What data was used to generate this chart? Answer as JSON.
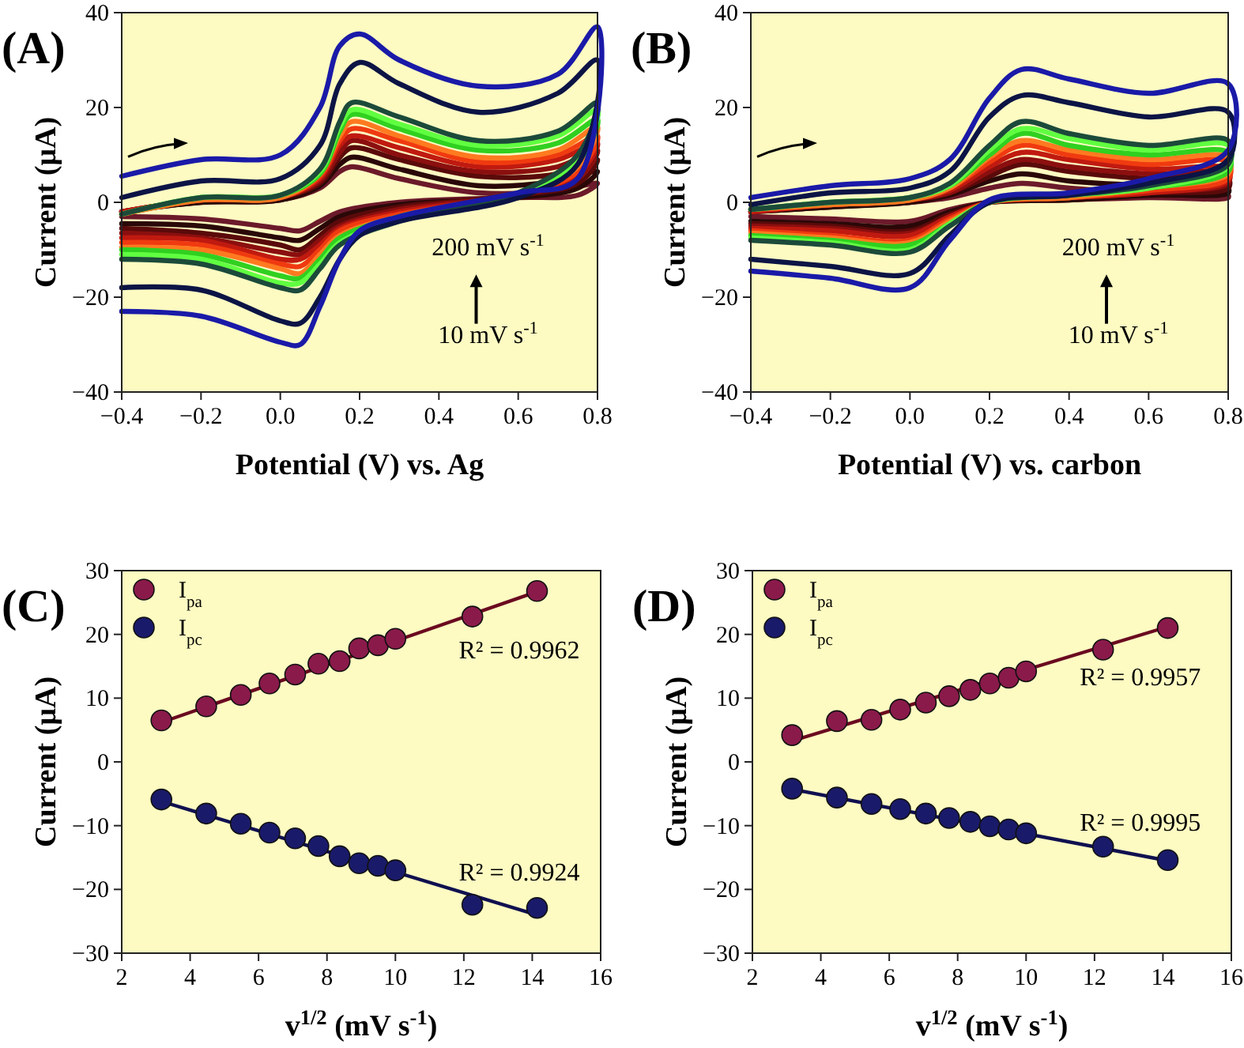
{
  "chart_data": [
    {
      "type": "line",
      "title": "(A)",
      "xlabel": "Potential (V) vs. Ag",
      "ylabel": "Current (μA)",
      "xlim": [
        -0.4,
        0.8
      ],
      "ylim": [
        -40,
        40
      ],
      "xticks": [
        {
          "value": -0.4,
          "label": "−0.4"
        },
        {
          "value": -0.2,
          "label": "−0.2"
        },
        {
          "value": 0,
          "label": "0.0"
        },
        0.2,
        0.4,
        0.6,
        0.8
      ],
      "yticks": [
        {
          "value": -40,
          "label": "−40"
        },
        {
          "value": -20,
          "label": "−20"
        },
        0,
        20,
        40
      ],
      "grid": false,
      "marker": "none",
      "line_style": "solid",
      "annotations": [
        "200 mV s$^{-1}$",
        "10 mV s$^{-1}$"
      ],
      "x": [
        -0.4,
        -0.2,
        0,
        0.1,
        0.15,
        0.18,
        0.3,
        0.5,
        0.7,
        0.8,
        0.75,
        0.6,
        0.3,
        0.15,
        0.1,
        0.05,
        0,
        -0.2,
        -0.4
      ],
      "series": [
        {
          "color": "#6b1a2a",
          "values": [
            -2,
            0,
            0.5,
            3,
            6.5,
            7.5,
            5,
            2,
            2.5,
            4,
            1.5,
            1,
            0,
            -2,
            -4,
            -6,
            -5.5,
            -3.5,
            -3
          ]
        },
        {
          "color": "#2a0808",
          "values": [
            -2,
            0,
            0.5,
            3.5,
            8,
            9.5,
            7,
            3.5,
            4.5,
            6.5,
            3,
            1,
            -0.5,
            -3,
            -5.5,
            -8,
            -7.5,
            -5,
            -4.5
          ]
        },
        {
          "color": "#5a0a0a",
          "values": [
            -2,
            0.5,
            1,
            4,
            9.5,
            11.5,
            9,
            5.5,
            6,
            9,
            4,
            1.5,
            -1,
            -4,
            -7,
            -10,
            -9,
            -6.5,
            -5.5
          ]
        },
        {
          "color": "#8b0f0f",
          "values": [
            -2,
            0.5,
            1,
            4.5,
            10.5,
            13,
            10,
            6.5,
            7.5,
            11,
            5,
            1.5,
            -1.5,
            -5,
            -8,
            -11,
            -10.5,
            -7.5,
            -6.5
          ]
        },
        {
          "color": "#c01a10",
          "values": [
            -2,
            0.5,
            1,
            5,
            12,
            14,
            11.5,
            7.5,
            9,
            12.5,
            6,
            1.5,
            -2,
            -5.5,
            -9,
            -12,
            -12,
            -8,
            -7.5
          ]
        },
        {
          "color": "#f03a10",
          "values": [
            -2.5,
            0.5,
            1,
            5.5,
            13,
            15.5,
            13,
            8.5,
            10,
            14,
            6.5,
            1.5,
            -2.5,
            -6,
            -10,
            -13.5,
            -13,
            -9,
            -8.5
          ]
        },
        {
          "color": "#ff7a20",
          "values": [
            -2.5,
            0.5,
            1,
            6,
            14,
            17,
            14,
            9.5,
            11,
            16,
            7.5,
            1.5,
            -3,
            -7,
            -11,
            -15,
            -14,
            -10,
            -9.5
          ]
        },
        {
          "color": "#30d020",
          "values": [
            -2.5,
            1,
            1.5,
            6,
            15,
            18.5,
            15.5,
            11,
            12.5,
            17.5,
            8.5,
            2,
            -3,
            -7.5,
            -12,
            -16,
            -15.5,
            -11,
            -10
          ]
        },
        {
          "color": "#60ff40",
          "values": [
            -2.5,
            1,
            1.5,
            6.5,
            16,
            19.5,
            16.5,
            12,
            14,
            19.5,
            9,
            2,
            -3.5,
            -8.5,
            -13,
            -17,
            -17,
            -12,
            -11
          ]
        },
        {
          "color": "#1c4a3a",
          "values": [
            -2.5,
            1,
            1.5,
            7,
            17,
            21,
            18,
            13,
            15,
            21,
            10,
            2,
            -4,
            -9,
            -14,
            -18.5,
            -18,
            -13,
            -12
          ]
        },
        {
          "color": "#0c1445",
          "x": [
            -0.4,
            -0.2,
            0,
            0.1,
            0.15,
            0.2,
            0.3,
            0.5,
            0.7,
            0.8,
            0.75,
            0.6,
            0.3,
            0.2,
            0.15,
            0.1,
            0.05,
            0,
            -0.2,
            -0.4
          ],
          "values": [
            1,
            4.5,
            5,
            12,
            25,
            29.5,
            25,
            19,
            23,
            30,
            8,
            1,
            -4,
            -7,
            -12,
            -20,
            -25.5,
            -25,
            -18.5,
            -18
          ]
        },
        {
          "color": "#1a1aa8",
          "x": [
            -0.4,
            -0.2,
            0,
            0.1,
            0.15,
            0.2,
            0.3,
            0.5,
            0.7,
            0.8,
            0.75,
            0.6,
            0.3,
            0.2,
            0.15,
            0.1,
            0.05,
            0,
            -0.2,
            -0.4
          ],
          "values": [
            5.5,
            9,
            10,
            20,
            33,
            35.5,
            30,
            24.5,
            27,
            37,
            5,
            2,
            -3,
            -6,
            -12,
            -22,
            -30,
            -29.5,
            -24,
            -23
          ]
        }
      ]
    },
    {
      "type": "line",
      "title": "(B)",
      "xlabel": "Potential (V) vs. carbon",
      "ylabel": "Current (μA)",
      "xlim": [
        -0.4,
        0.8
      ],
      "ylim": [
        -40,
        40
      ],
      "xticks": [
        {
          "value": -0.4,
          "label": "−0.4"
        },
        {
          "value": -0.2,
          "label": "−0.2"
        },
        {
          "value": 0,
          "label": "0.0"
        },
        0.2,
        0.4,
        0.6,
        0.8
      ],
      "yticks": [
        {
          "value": -40,
          "label": "−40"
        },
        {
          "value": -20,
          "label": "−20"
        },
        0,
        20,
        40
      ],
      "grid": false,
      "marker": "none",
      "line_style": "solid",
      "annotations": [
        "200 mV s$^{-1}$",
        "10 mV s$^{-1}$"
      ],
      "x": [
        -0.4,
        -0.2,
        0,
        0.1,
        0.2,
        0.28,
        0.4,
        0.6,
        0.8,
        0.8,
        0.6,
        0.4,
        0.2,
        0.1,
        0,
        -0.2,
        -0.4
      ],
      "series": [
        {
          "color": "#6b1a2a",
          "values": [
            -2,
            -1,
            0,
            1,
            3,
            4,
            3,
            2,
            1.5,
            1,
            1,
            0.5,
            0,
            -1.5,
            -4,
            -3.5,
            -3
          ]
        },
        {
          "color": "#2a0808",
          "values": [
            -2,
            -1,
            0,
            1.5,
            4.5,
            6,
            4.5,
            3.5,
            3,
            2,
            1.5,
            0.5,
            0,
            -2,
            -5,
            -4.5,
            -4
          ]
        },
        {
          "color": "#5a0a0a",
          "values": [
            -2,
            -0.5,
            0.5,
            2,
            5.5,
            8,
            6.5,
            5,
            5,
            3,
            2,
            1,
            0,
            -2.5,
            -6,
            -5,
            -4.5
          ]
        },
        {
          "color": "#8b0f0f",
          "values": [
            -2,
            -0.5,
            0.5,
            2,
            6.5,
            9,
            7.5,
            6,
            6,
            4,
            2,
            1,
            0,
            -3,
            -6.5,
            -5.5,
            -5
          ]
        },
        {
          "color": "#c01a10",
          "values": [
            -2,
            -0.5,
            0.5,
            2.5,
            7.5,
            10.5,
            9,
            7,
            7,
            4.5,
            2,
            1,
            0,
            -3,
            -7,
            -6,
            -5.5
          ]
        },
        {
          "color": "#f03a10",
          "values": [
            -1.5,
            -0.5,
            0.5,
            3,
            8.5,
            12,
            10,
            8,
            8.5,
            5,
            2.5,
            1,
            0,
            -3.5,
            -8,
            -7,
            -6
          ]
        },
        {
          "color": "#ff7a20",
          "values": [
            -1.5,
            -0.5,
            0.5,
            3,
            9.5,
            13,
            11,
            9,
            9.5,
            6,
            3,
            1,
            0,
            -4,
            -8.5,
            -7.5,
            -6.5
          ]
        },
        {
          "color": "#30d020",
          "values": [
            -1.5,
            0,
            1,
            3.5,
            10,
            14.5,
            12,
            10,
            10.5,
            6.5,
            3,
            1.5,
            0,
            -4.5,
            -9,
            -8,
            -7
          ]
        },
        {
          "color": "#60ff40",
          "values": [
            -1.5,
            0,
            1,
            3.5,
            11,
            15.5,
            13.5,
            11,
            12,
            7.5,
            3,
            1.5,
            0,
            -4.5,
            -10,
            -8.5,
            -7.5
          ]
        },
        {
          "color": "#1c4a3a",
          "values": [
            -1.5,
            0,
            1,
            4,
            12,
            17,
            14.5,
            12,
            13,
            8,
            3.5,
            1.5,
            0,
            -5,
            -10.5,
            -9,
            -8
          ]
        },
        {
          "color": "#0c1445",
          "values": [
            -0.5,
            2,
            3,
            6.5,
            18,
            22.5,
            21,
            18,
            19,
            9,
            4,
            1.5,
            0,
            -7,
            -15,
            -13.5,
            -12
          ]
        },
        {
          "color": "#1a1aa8",
          "values": [
            1,
            3.5,
            5,
            9,
            22,
            28,
            26,
            23,
            25,
            11,
            5,
            2,
            0.5,
            -8,
            -18,
            -16,
            -14.5
          ]
        }
      ]
    },
    {
      "type": "scatter",
      "title": "(C)",
      "xlabel": "v$^{1/2}$ (mV s$^{-1}$)",
      "ylabel": "Current (μA)",
      "xlim": [
        2,
        16
      ],
      "ylim": [
        -30,
        30
      ],
      "xticks": [
        2,
        4,
        6,
        8,
        10,
        12,
        14,
        16
      ],
      "yticks": [
        {
          "value": -30,
          "label": "−30"
        },
        {
          "value": -20,
          "label": "−20"
        },
        {
          "value": -10,
          "label": "−10"
        },
        0,
        10,
        20,
        30
      ],
      "grid": false,
      "legend": "top left",
      "annotations": [
        "R² = 0.9962",
        "R² = 0.9924"
      ],
      "x": [
        3.16,
        4.47,
        5.48,
        6.32,
        7.07,
        7.75,
        8.37,
        8.94,
        9.49,
        10,
        12.25,
        14.14
      ],
      "series": [
        {
          "type": "line",
          "color": "#6a0a20",
          "x": [
            3.16,
            14.14
          ],
          "values": [
            6.2,
            26.7
          ]
        },
        {
          "type": "line",
          "color": "#101050",
          "x": [
            3.16,
            14.14
          ],
          "values": [
            -6.2,
            -24
          ]
        },
        {
          "name": "I$_{pa}$",
          "color": "#8a1a4a",
          "marker": "circle",
          "values": [
            6.5,
            8.7,
            10.5,
            12.3,
            13.7,
            15.4,
            15.8,
            17.8,
            18.3,
            19.3,
            22.8,
            26.8
          ]
        },
        {
          "name": "I$_{pc}$",
          "color": "#1a1a6a",
          "marker": "circle",
          "values": [
            -5.9,
            -8.1,
            -9.7,
            -11.1,
            -12,
            -13.2,
            -14.8,
            -15.9,
            -16.3,
            -17,
            -22.4,
            -22.9
          ]
        }
      ]
    },
    {
      "type": "scatter",
      "title": "(D)",
      "xlabel": "v$^{1/2}$ (mV s$^{-1}$)",
      "ylabel": "Current (μA)",
      "xlim": [
        2,
        16
      ],
      "ylim": [
        -30,
        30
      ],
      "xticks": [
        2,
        4,
        6,
        8,
        10,
        12,
        14,
        16
      ],
      "yticks": [
        {
          "value": -30,
          "label": "−30"
        },
        {
          "value": -20,
          "label": "−20"
        },
        {
          "value": -10,
          "label": "−10"
        },
        0,
        10,
        20,
        30
      ],
      "grid": false,
      "legend": "top left",
      "annotations": [
        "R² = 0.9957",
        "R² = 0.9995"
      ],
      "x": [
        3.16,
        4.47,
        5.48,
        6.32,
        7.07,
        7.75,
        8.37,
        8.94,
        9.49,
        10,
        12.25,
        14.14
      ],
      "series": [
        {
          "type": "line",
          "color": "#6a0a20",
          "x": [
            3.16,
            14.14
          ],
          "values": [
            3.3,
            21.2
          ]
        },
        {
          "type": "line",
          "color": "#101050",
          "x": [
            3.16,
            14.14
          ],
          "values": [
            -4.3,
            -15.5
          ]
        },
        {
          "name": "I$_{pa}$",
          "color": "#8a1a4a",
          "marker": "circle",
          "values": [
            4.2,
            6.4,
            6.6,
            8.2,
            9.3,
            10.3,
            11.3,
            12.3,
            13.2,
            14.2,
            17.6,
            21
          ]
        },
        {
          "name": "I$_{pc}$",
          "color": "#1a1a6a",
          "marker": "circle",
          "values": [
            -4.2,
            -5.6,
            -6.6,
            -7.4,
            -8.1,
            -8.8,
            -9.4,
            -10.1,
            -10.6,
            -11.2,
            -13.3,
            -15.4
          ]
        }
      ]
    }
  ]
}
